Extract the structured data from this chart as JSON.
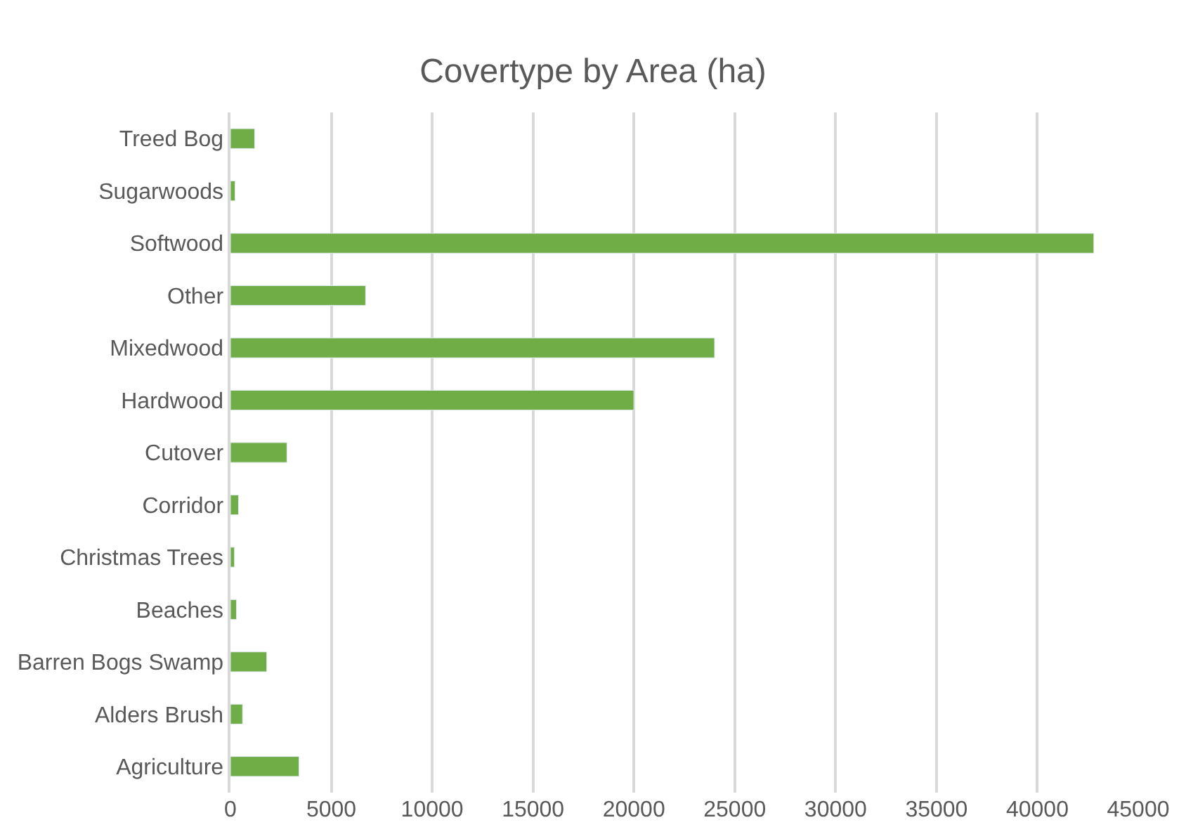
{
  "chart_data": {
    "type": "bar",
    "orientation": "horizontal",
    "title": "Covertype by Area (ha)",
    "categories": [
      "Treed Bog",
      "Sugarwoods",
      "Softwood",
      "Other",
      "Mixedwood",
      "Hardwood",
      "Cutover",
      "Corridor",
      "Christmas Trees",
      "Beaches",
      "Barren Bogs Swamp",
      "Alders Brush",
      "Agriculture"
    ],
    "values": [
      1200,
      230,
      42800,
      6700,
      24000,
      20000,
      2800,
      400,
      200,
      300,
      1800,
      600,
      3400
    ],
    "color": "#70ad47",
    "xlim": [
      0,
      45000
    ],
    "xticks": [
      0,
      5000,
      10000,
      15000,
      20000,
      25000,
      30000,
      35000,
      40000,
      45000
    ],
    "grid": "x"
  }
}
